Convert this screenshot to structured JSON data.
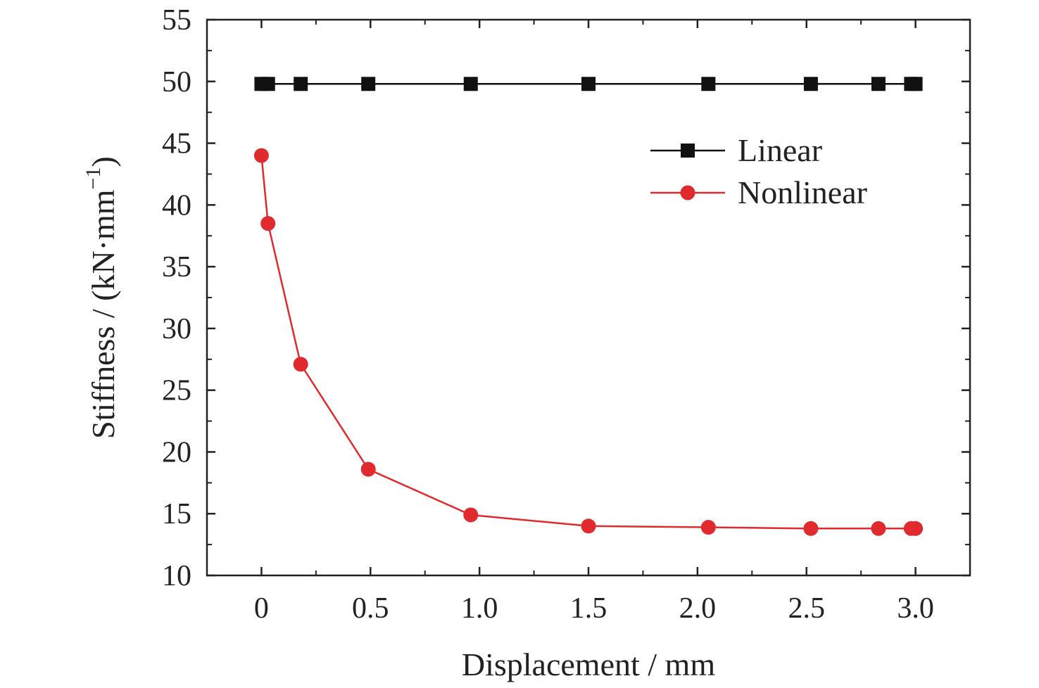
{
  "chart_data": {
    "type": "line",
    "title": "",
    "xlabel": "Displacement / mm",
    "ylabel": "Stiffness / (kN·mm",
    "ylabel_superscript": "−1",
    "ylabel_close": ")",
    "xlim": [
      -0.25,
      3.25
    ],
    "ylim": [
      10,
      55
    ],
    "x_ticks": [
      0,
      0.5,
      1.0,
      1.5,
      2.0,
      2.5,
      3.0
    ],
    "x_tick_labels": [
      "0",
      "0.5",
      "1.0",
      "1.5",
      "2.0",
      "2.5",
      "3.0"
    ],
    "y_ticks": [
      10,
      15,
      20,
      25,
      30,
      35,
      40,
      45,
      50,
      55
    ],
    "y_tick_labels": [
      "10",
      "15",
      "20",
      "25",
      "30",
      "35",
      "40",
      "45",
      "50",
      "55"
    ],
    "grid": false,
    "legend_position": "top-right",
    "series": [
      {
        "name": "Linear",
        "color": "#111111",
        "marker": "square",
        "x": [
          0,
          0.03,
          0.18,
          0.49,
          0.96,
          1.5,
          2.05,
          2.52,
          2.83,
          2.98,
          3.0
        ],
        "values": [
          49.8,
          49.8,
          49.8,
          49.8,
          49.8,
          49.8,
          49.8,
          49.8,
          49.8,
          49.8,
          49.8
        ]
      },
      {
        "name": "Nonlinear",
        "color": "#e02a2e",
        "marker": "circle",
        "x": [
          0,
          0.03,
          0.18,
          0.49,
          0.96,
          1.5,
          2.05,
          2.52,
          2.83,
          2.98,
          3.0
        ],
        "values": [
          44.0,
          38.5,
          27.1,
          18.6,
          14.9,
          14.0,
          13.9,
          13.8,
          13.8,
          13.8,
          13.8
        ]
      }
    ]
  }
}
